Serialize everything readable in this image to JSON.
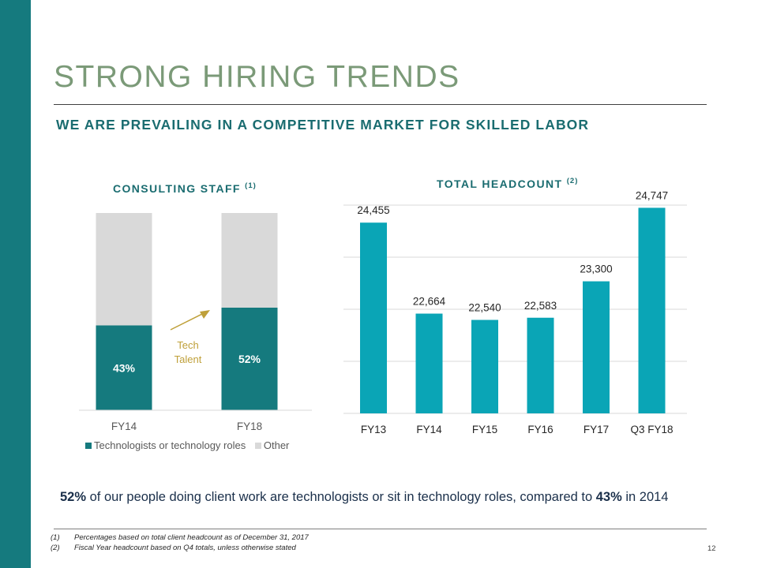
{
  "slide": {
    "title": "STRONG HIRING TRENDS",
    "subtitle": "WE ARE PREVAILING IN A COMPETITIVE MARKET FOR SKILLED LABOR",
    "page_number": "12",
    "colors": {
      "sidebar": "#157a7e",
      "title": "#7b9a78",
      "accent": "#1a6c70"
    }
  },
  "summary": {
    "pct_new": "52%",
    "text_mid": " of our people doing client work are technologists or sit in technology roles, compared to ",
    "pct_old": "43%",
    "text_end": " in 2014"
  },
  "footnotes": [
    {
      "num": "(1)",
      "text": "Percentages based on total client headcount as of December 31, 2017"
    },
    {
      "num": "(2)",
      "text": "Fiscal Year headcount based on Q4 totals, unless otherwise stated"
    }
  ],
  "chart_data": [
    {
      "type": "bar",
      "stacked": true,
      "title": "CONSULTING STAFF",
      "title_sup": "(1)",
      "categories": [
        "FY14",
        "FY18"
      ],
      "series": [
        {
          "name": "Technologists or technology roles",
          "values": [
            43,
            52
          ],
          "labels": [
            "43%",
            "52%"
          ],
          "color": "#157a7e"
        },
        {
          "name": "Other",
          "values": [
            57,
            48
          ],
          "color": "#d9d9d9"
        }
      ],
      "ylim": [
        0,
        100
      ],
      "annotation": {
        "line1": "Tech",
        "line2": "Talent",
        "color": "#bfa03a"
      },
      "legend_position": "bottom"
    },
    {
      "type": "bar",
      "title": "TOTAL HEADCOUNT",
      "title_sup": "(2)",
      "categories": [
        "FY13",
        "FY14",
        "FY15",
        "FY16",
        "FY17",
        "Q3 FY18"
      ],
      "values": [
        24455,
        22664,
        22540,
        22583,
        23300,
        24747
      ],
      "labels": [
        "24,455",
        "22,664",
        "22,540",
        "22,583",
        "23,300",
        "24,747"
      ],
      "ylim": [
        20700,
        24800
      ],
      "gridlines": true,
      "color": "#0aa5b6"
    }
  ]
}
